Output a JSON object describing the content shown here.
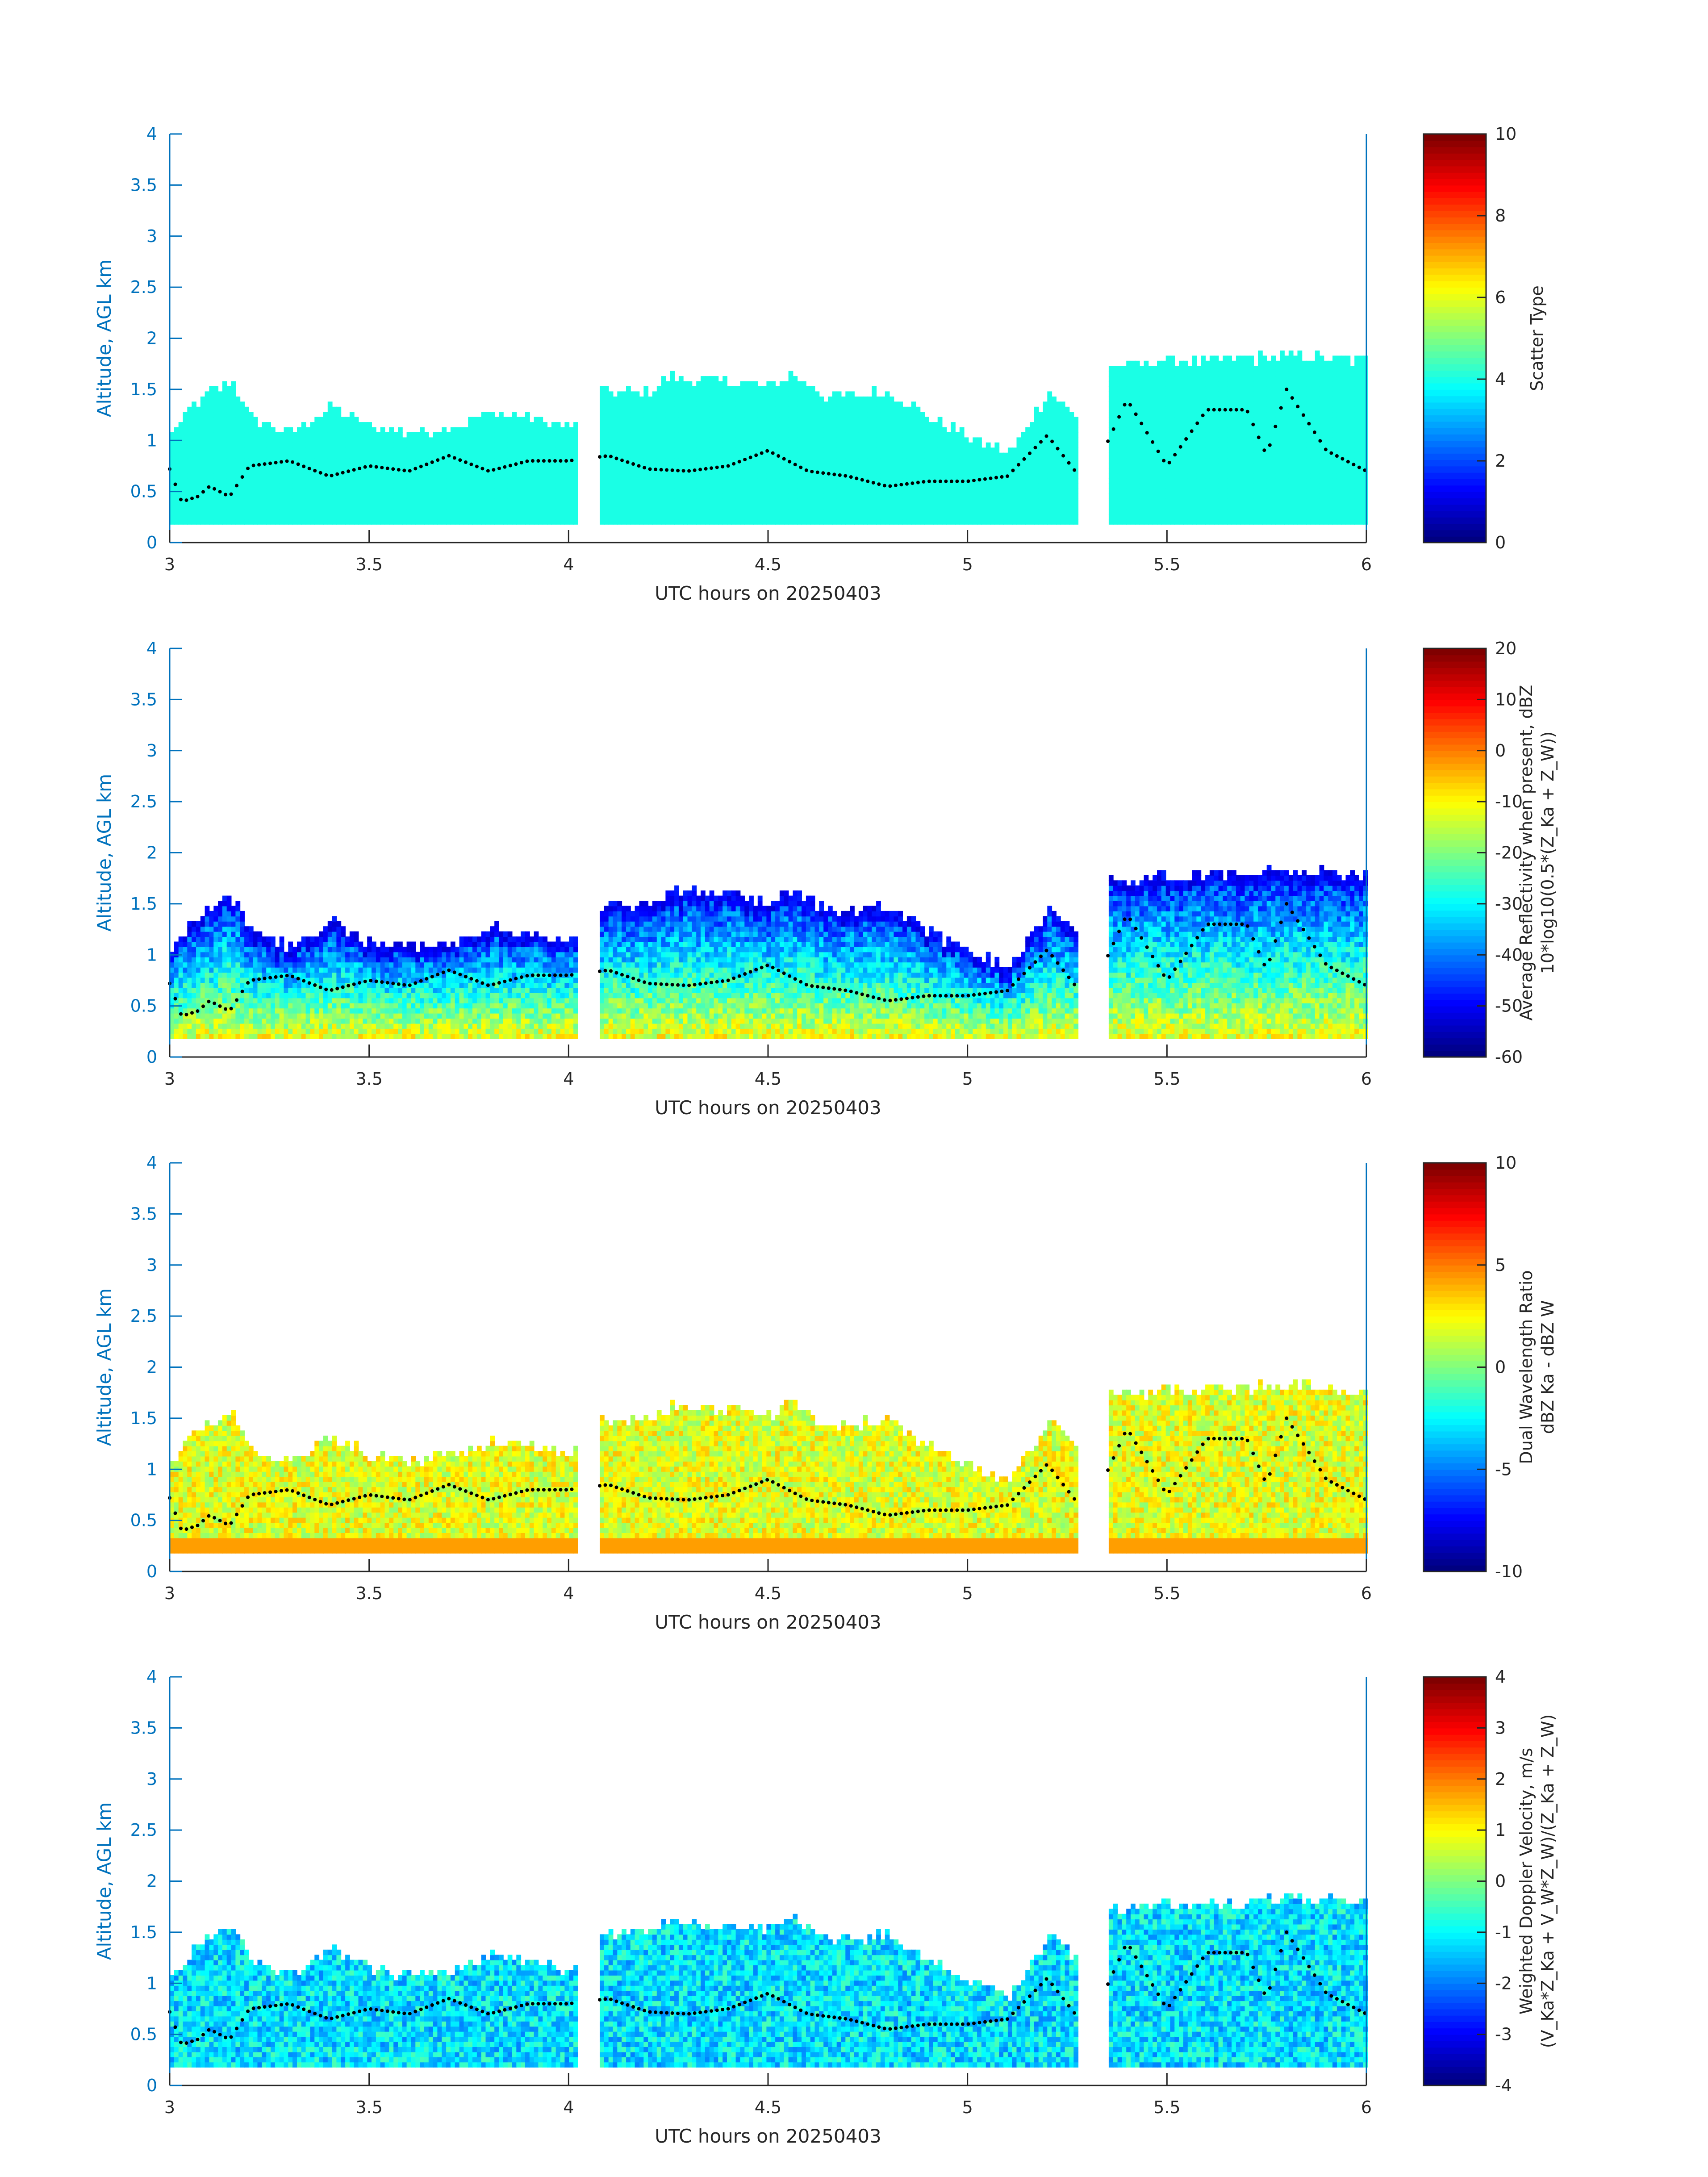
{
  "chart_data": [
    {
      "type": "heatmap",
      "xlabel": "UTC hours on 20250403",
      "ylabel": "Altitude, AGL km",
      "xlim": [
        3,
        6
      ],
      "ylim": [
        0,
        4
      ],
      "xticks": [
        "3",
        "3.5",
        "4",
        "4.5",
        "5",
        "5.5",
        "6"
      ],
      "yticks": [
        "0",
        "0.5",
        "1",
        "1.5",
        "2",
        "2.5",
        "3",
        "3.5",
        "4"
      ],
      "colorbar": {
        "label_lines": [
          "Scatter Type"
        ],
        "min": 0,
        "max": 10,
        "ticks": [
          "0",
          "2",
          "4",
          "6",
          "8",
          "10"
        ]
      },
      "colormap": "jet",
      "field": "scatter_type",
      "notes_hidden": ""
    },
    {
      "type": "heatmap",
      "xlabel": "UTC hours on 20250403",
      "ylabel": "Altitude, AGL km",
      "xlim": [
        3,
        6
      ],
      "ylim": [
        0,
        4
      ],
      "xticks": [
        "3",
        "3.5",
        "4",
        "4.5",
        "5",
        "5.5",
        "6"
      ],
      "yticks": [
        "0",
        "0.5",
        "1",
        "1.5",
        "2",
        "2.5",
        "3",
        "3.5",
        "4"
      ],
      "colorbar": {
        "label_lines": [
          "Average Reflectivity when present, dBZ",
          "10*log10(0.5*(Z_Ka + Z_W))"
        ],
        "min": -60,
        "max": 20,
        "ticks": [
          "-60",
          "-50",
          "-40",
          "-30",
          "-20",
          "-10",
          "0",
          "10",
          "20"
        ]
      },
      "colormap": "jet",
      "field": "reflectivity"
    },
    {
      "type": "heatmap",
      "xlabel": "UTC hours on 20250403",
      "ylabel": "Altitude, AGL km",
      "xlim": [
        3,
        6
      ],
      "ylim": [
        0,
        4
      ],
      "xticks": [
        "3",
        "3.5",
        "4",
        "4.5",
        "5",
        "5.5",
        "6"
      ],
      "yticks": [
        "0",
        "0.5",
        "1",
        "1.5",
        "2",
        "2.5",
        "3",
        "3.5",
        "4"
      ],
      "colorbar": {
        "label_lines": [
          "Dual Wavelength Ratio",
          "dBZ Ka - dBZ W"
        ],
        "min": -10,
        "max": 10,
        "ticks": [
          "-10",
          "-5",
          "0",
          "5",
          "10"
        ]
      },
      "colormap": "jet",
      "field": "dwr"
    },
    {
      "type": "heatmap",
      "xlabel": "UTC hours on 20250403",
      "ylabel": "Altitude, AGL km",
      "xlim": [
        3,
        6
      ],
      "ylim": [
        0,
        4
      ],
      "xticks": [
        "3",
        "3.5",
        "4",
        "4.5",
        "5",
        "5.5",
        "6"
      ],
      "yticks": [
        "0",
        "0.5",
        "1",
        "1.5",
        "2",
        "2.5",
        "3",
        "3.5",
        "4"
      ],
      "colorbar": {
        "label_lines": [
          "Weighted Doppler Velocity, m/s",
          "(V_Ka*Z_Ka + V_W*Z_W)/(Z_Ka + Z_W)"
        ],
        "min": -4,
        "max": 4,
        "ticks": [
          "-4",
          "-3",
          "-2",
          "-1",
          "0",
          "1",
          "2",
          "3",
          "4"
        ]
      },
      "colormap": "jet",
      "field": "velocity"
    }
  ],
  "cloud_profile": {
    "x_data_gaps": [
      [
        4.02,
        4.07
      ],
      [
        5.27,
        5.35
      ]
    ],
    "top_km": [
      [
        3.0,
        1.05
      ],
      [
        3.05,
        1.3
      ],
      [
        3.1,
        1.45
      ],
      [
        3.15,
        1.55
      ],
      [
        3.2,
        1.2
      ],
      [
        3.3,
        1.05
      ],
      [
        3.4,
        1.3
      ],
      [
        3.5,
        1.1
      ],
      [
        3.6,
        1.05
      ],
      [
        3.7,
        1.1
      ],
      [
        3.8,
        1.25
      ],
      [
        3.9,
        1.2
      ],
      [
        4.0,
        1.1
      ],
      [
        4.07,
        1.45
      ],
      [
        4.2,
        1.45
      ],
      [
        4.25,
        1.6
      ],
      [
        4.4,
        1.55
      ],
      [
        4.5,
        1.5
      ],
      [
        4.55,
        1.62
      ],
      [
        4.65,
        1.4
      ],
      [
        4.8,
        1.45
      ],
      [
        4.9,
        1.2
      ],
      [
        5.0,
        1.0
      ],
      [
        5.1,
        0.85
      ],
      [
        5.2,
        1.45
      ],
      [
        5.27,
        1.2
      ],
      [
        5.35,
        1.7
      ],
      [
        5.5,
        1.75
      ],
      [
        5.6,
        1.75
      ],
      [
        5.8,
        1.8
      ],
      [
        6.0,
        1.75
      ]
    ],
    "base_km": 0.18,
    "dotted_layer_km": [
      [
        3.0,
        0.72
      ],
      [
        3.03,
        0.4
      ],
      [
        3.07,
        0.45
      ],
      [
        3.1,
        0.55
      ],
      [
        3.15,
        0.45
      ],
      [
        3.2,
        0.75
      ],
      [
        3.3,
        0.8
      ],
      [
        3.4,
        0.65
      ],
      [
        3.5,
        0.75
      ],
      [
        3.6,
        0.7
      ],
      [
        3.7,
        0.85
      ],
      [
        3.8,
        0.7
      ],
      [
        3.9,
        0.8
      ],
      [
        4.0,
        0.8
      ],
      [
        4.1,
        0.85
      ],
      [
        4.2,
        0.72
      ],
      [
        4.3,
        0.7
      ],
      [
        4.4,
        0.75
      ],
      [
        4.5,
        0.9
      ],
      [
        4.6,
        0.7
      ],
      [
        4.7,
        0.65
      ],
      [
        4.8,
        0.55
      ],
      [
        4.9,
        0.6
      ],
      [
        5.0,
        0.6
      ],
      [
        5.1,
        0.65
      ],
      [
        5.2,
        1.05
      ],
      [
        5.3,
        0.55
      ],
      [
        5.4,
        1.4
      ],
      [
        5.5,
        0.75
      ],
      [
        5.6,
        1.3
      ],
      [
        5.7,
        1.3
      ],
      [
        5.75,
        0.85
      ],
      [
        5.8,
        1.5
      ],
      [
        5.9,
        0.9
      ],
      [
        6.0,
        0.7
      ]
    ]
  }
}
